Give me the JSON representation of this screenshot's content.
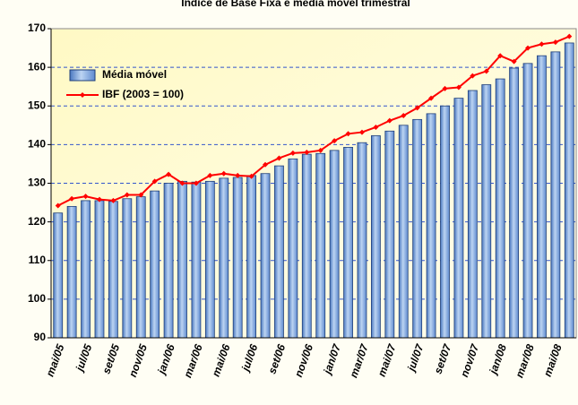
{
  "chart_data": {
    "type": "bar_line",
    "title": "Índice de Base Fixa e média móvel trimestral",
    "categories": [
      "mai/05",
      null,
      "jul/05",
      null,
      "set/05",
      null,
      "nov/05",
      null,
      "jan/06",
      null,
      "mar/06",
      null,
      "mai/06",
      null,
      "jul/06",
      null,
      "set/06",
      null,
      "nov/06",
      null,
      "jan/07",
      null,
      "mar/07",
      null,
      "mai/07",
      null,
      "jul/07",
      null,
      "set/07",
      null,
      "nov/07",
      null,
      "jan/08",
      null,
      "mar/08",
      null,
      "mai/08",
      null
    ],
    "series": [
      {
        "name": "Média móvel",
        "type": "bar",
        "color": "#7fa6d9",
        "values": [
          122.3,
          124,
          125.5,
          125.5,
          125.3,
          126,
          126.5,
          128,
          130,
          130.5,
          130.3,
          130.5,
          131.3,
          131.5,
          132,
          132.5,
          134.5,
          136.3,
          137.5,
          137.7,
          138.5,
          139.3,
          140.5,
          142.3,
          143.5,
          145,
          146.5,
          148,
          150,
          152,
          154,
          155.5,
          157,
          159.8,
          161,
          163,
          164,
          166.3
        ]
      },
      {
        "name": "IBF (2003 = 100)",
        "type": "line",
        "color": "#ff0000",
        "values": [
          124.2,
          126,
          126.6,
          125.8,
          125.5,
          127,
          127,
          130.5,
          132.3,
          130,
          130,
          132,
          132.5,
          132,
          131.8,
          134.8,
          136.5,
          137.8,
          138,
          138.5,
          141,
          142.8,
          143.2,
          144.5,
          146.2,
          147.5,
          149.5,
          152,
          154.5,
          154.8,
          157.8,
          159,
          163,
          161.5,
          165,
          166,
          166.5,
          168
        ]
      }
    ],
    "ylim": [
      90,
      170
    ],
    "yticks": [
      90,
      100,
      110,
      120,
      130,
      140,
      150,
      160,
      170
    ],
    "grid": true,
    "legend": "upper left"
  }
}
